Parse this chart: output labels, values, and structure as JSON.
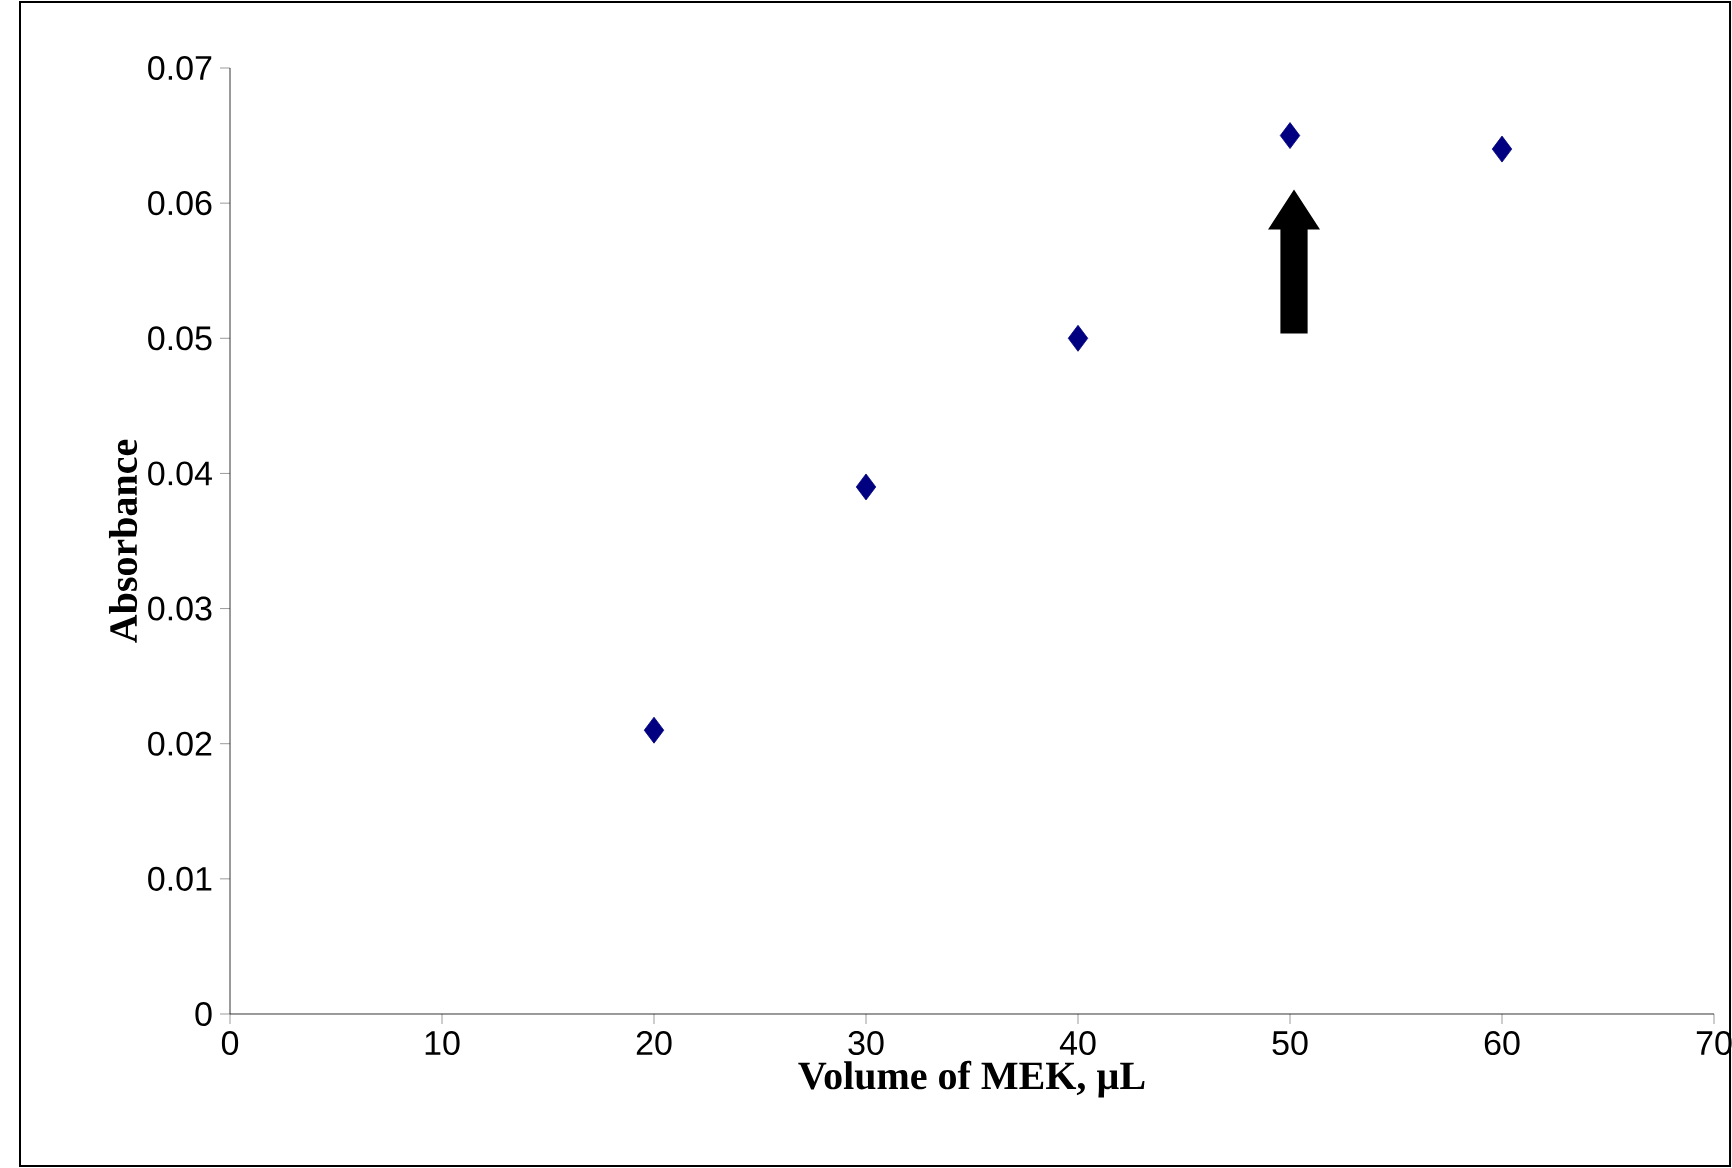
{
  "chart_data": {
    "type": "scatter",
    "xlabel": "Volume of MEK, µL",
    "ylabel": "Absorbance",
    "x": [
      20,
      30,
      40,
      50,
      60
    ],
    "series": [
      {
        "color": "#000080",
        "values": [
          0.021,
          0.039,
          0.05,
          0.065,
          0.064
        ]
      }
    ],
    "xlim": [
      0,
      70
    ],
    "ylim": [
      0,
      0.07
    ],
    "xticks": [
      0,
      10,
      20,
      30,
      40,
      50,
      60,
      70
    ],
    "yticks": [
      0,
      0.01,
      0.02,
      0.03,
      0.04,
      0.05,
      0.06,
      0.07
    ],
    "marker": "diamond"
  }
}
